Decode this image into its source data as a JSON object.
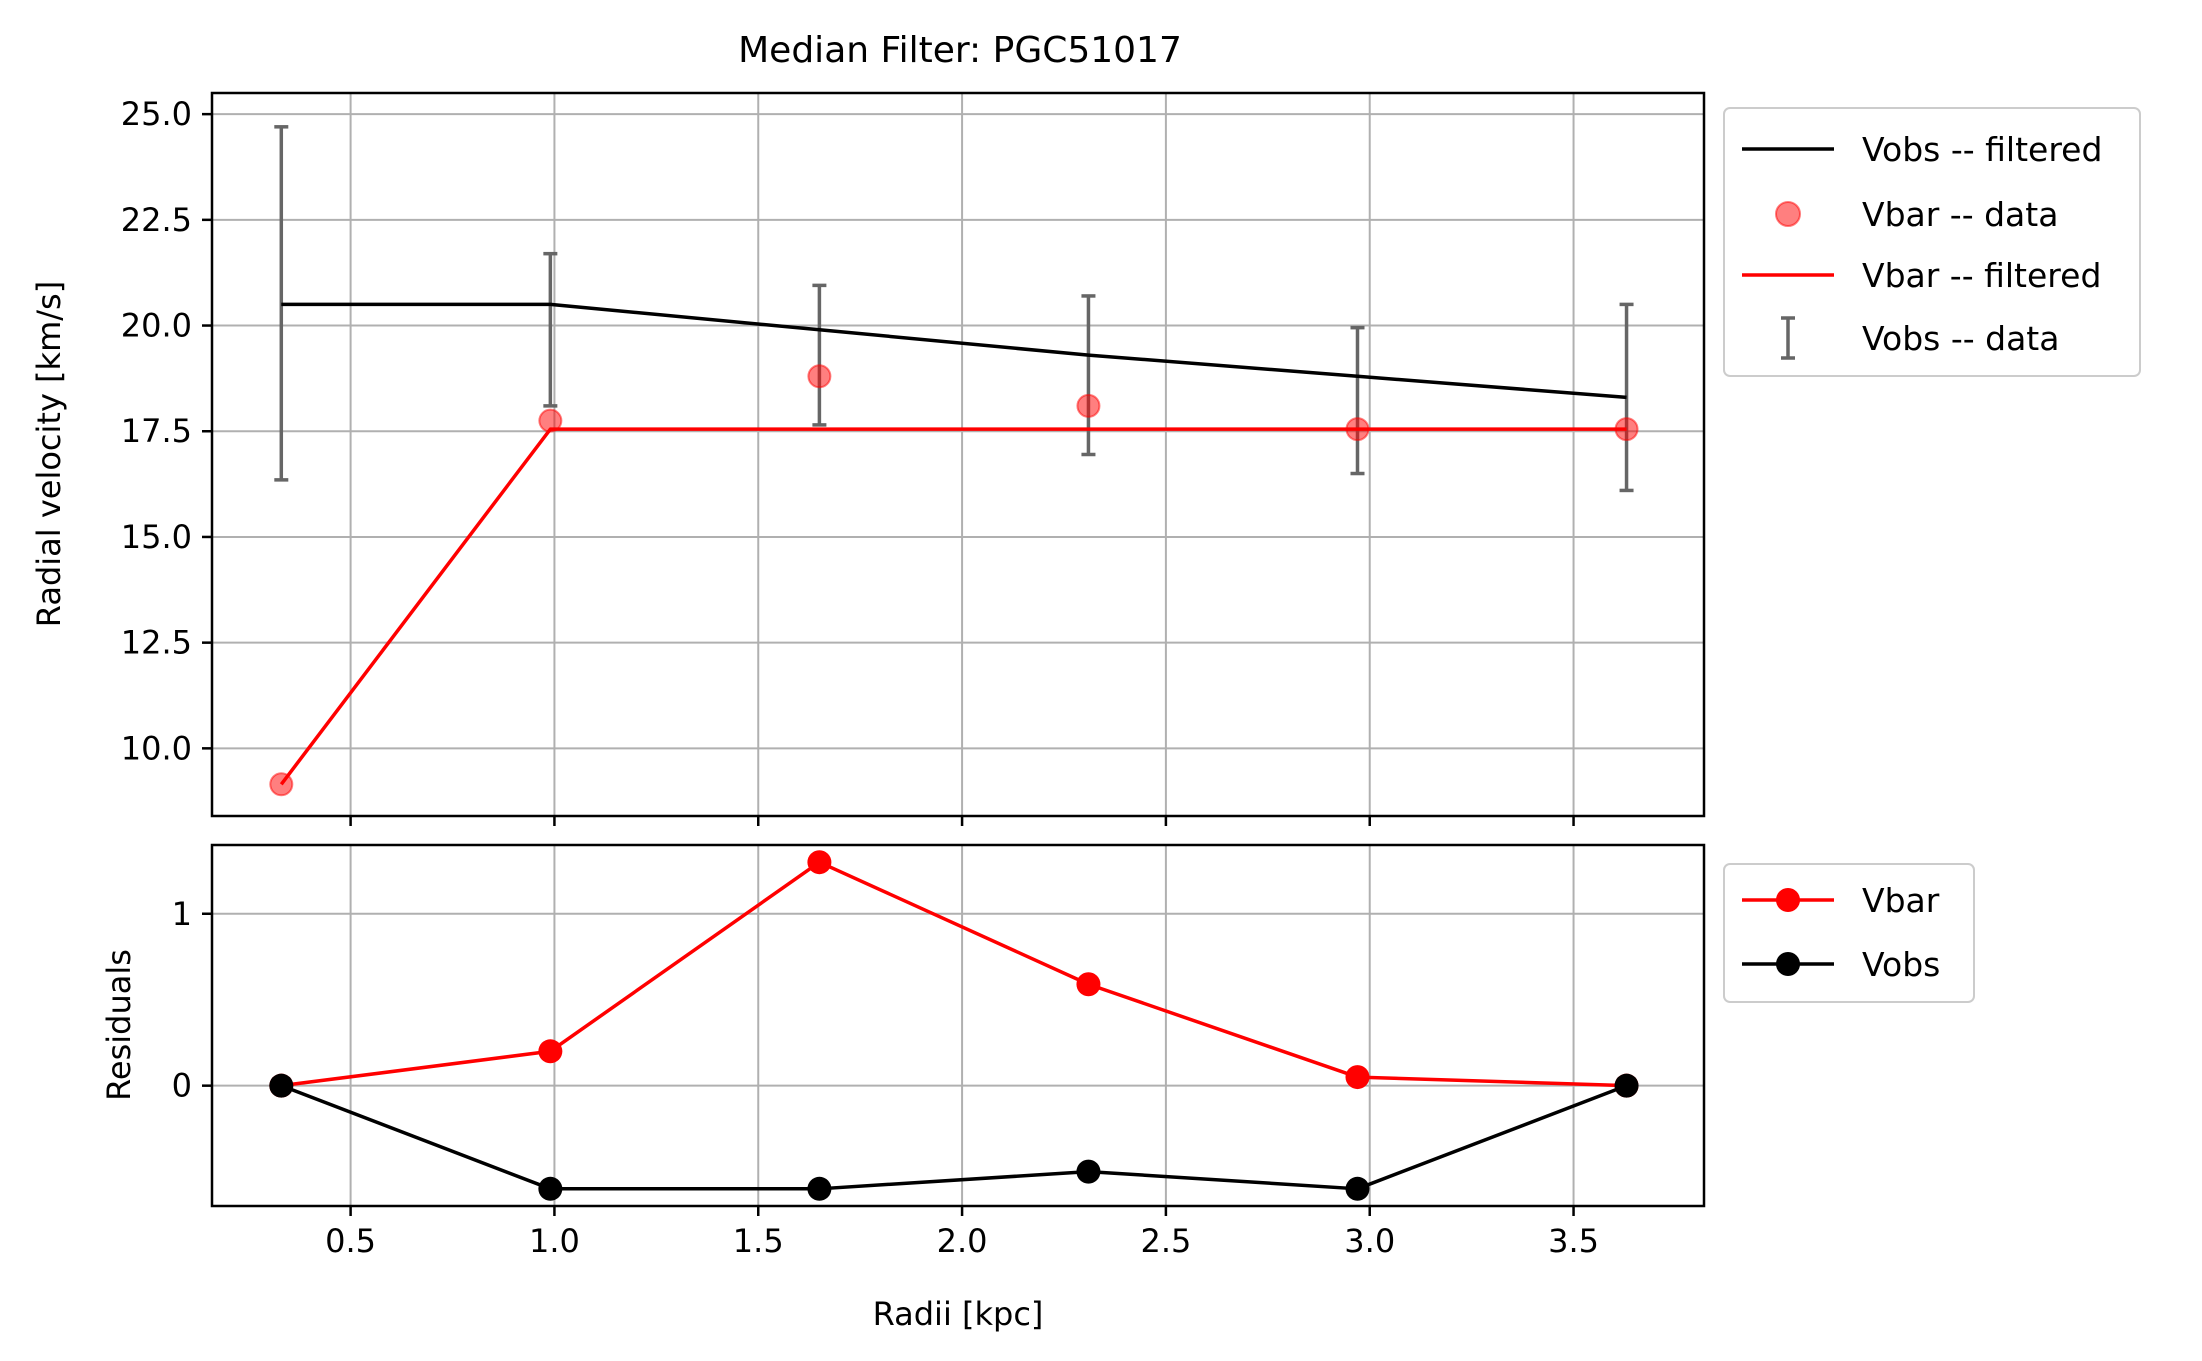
{
  "chart_data": [
    {
      "type": "line",
      "title": "Median Filter: PGC51017",
      "xlabel": "",
      "ylabel": "Radial velocity [km/s]",
      "xlim": [
        0.16,
        3.82
      ],
      "ylim": [
        8.4,
        25.5
      ],
      "xticks": [
        0.5,
        1.0,
        1.5,
        2.0,
        2.5,
        3.0,
        3.5
      ],
      "yticks": [
        "10.0",
        "12.5",
        "15.0",
        "17.5",
        "20.0",
        "22.5",
        "25.0"
      ],
      "grid": true,
      "legend_position": "outside-top-right",
      "series": [
        {
          "name": "Vobs -- filtered",
          "kind": "line",
          "color": "#000000",
          "x": [
            0.33,
            0.99,
            1.65,
            2.31,
            2.97,
            3.63
          ],
          "y": [
            20.5,
            20.5,
            19.9,
            19.3,
            18.8,
            18.3
          ]
        },
        {
          "name": "Vbar -- data",
          "kind": "scatter",
          "color": "#ff0000",
          "x": [
            0.33,
            0.99,
            1.65,
            2.31,
            2.97,
            3.63
          ],
          "y": [
            9.15,
            17.75,
            18.8,
            18.1,
            17.55,
            17.55
          ]
        },
        {
          "name": "Vbar -- filtered",
          "kind": "line",
          "color": "#ff0000",
          "x": [
            0.33,
            0.99,
            1.65,
            2.31,
            2.97,
            3.63
          ],
          "y": [
            9.15,
            17.55,
            17.55,
            17.55,
            17.55,
            17.55
          ]
        },
        {
          "name": "Vobs -- data",
          "kind": "errorbar",
          "color": "#666666",
          "x": [
            0.33,
            0.99,
            1.65,
            2.31,
            2.97,
            3.63
          ],
          "y_low": [
            16.35,
            18.1,
            17.65,
            16.95,
            16.5,
            16.1
          ],
          "y_high": [
            24.7,
            21.7,
            20.95,
            20.7,
            19.95,
            20.5
          ]
        }
      ]
    },
    {
      "type": "line",
      "title": "",
      "xlabel": "Radii [kpc]",
      "ylabel": "Residuals",
      "xlim": [
        0.16,
        3.82
      ],
      "ylim": [
        -0.7,
        1.4
      ],
      "xticks": [
        "0.5",
        "1.0",
        "1.5",
        "2.0",
        "2.5",
        "3.0",
        "3.5"
      ],
      "yticks": [
        "0",
        "1"
      ],
      "grid": true,
      "legend_position": "outside-top-right",
      "series": [
        {
          "name": "Vbar",
          "kind": "line-marker",
          "color": "#ff0000",
          "x": [
            0.33,
            0.99,
            1.65,
            2.31,
            2.97,
            3.63
          ],
          "y": [
            0.0,
            0.2,
            1.3,
            0.59,
            0.05,
            0.0
          ]
        },
        {
          "name": "Vobs",
          "kind": "line-marker",
          "color": "#000000",
          "x": [
            0.33,
            0.99,
            1.65,
            2.31,
            2.97,
            3.63
          ],
          "y": [
            0.0,
            -0.6,
            -0.6,
            -0.5,
            -0.6,
            0.0
          ]
        }
      ]
    }
  ]
}
